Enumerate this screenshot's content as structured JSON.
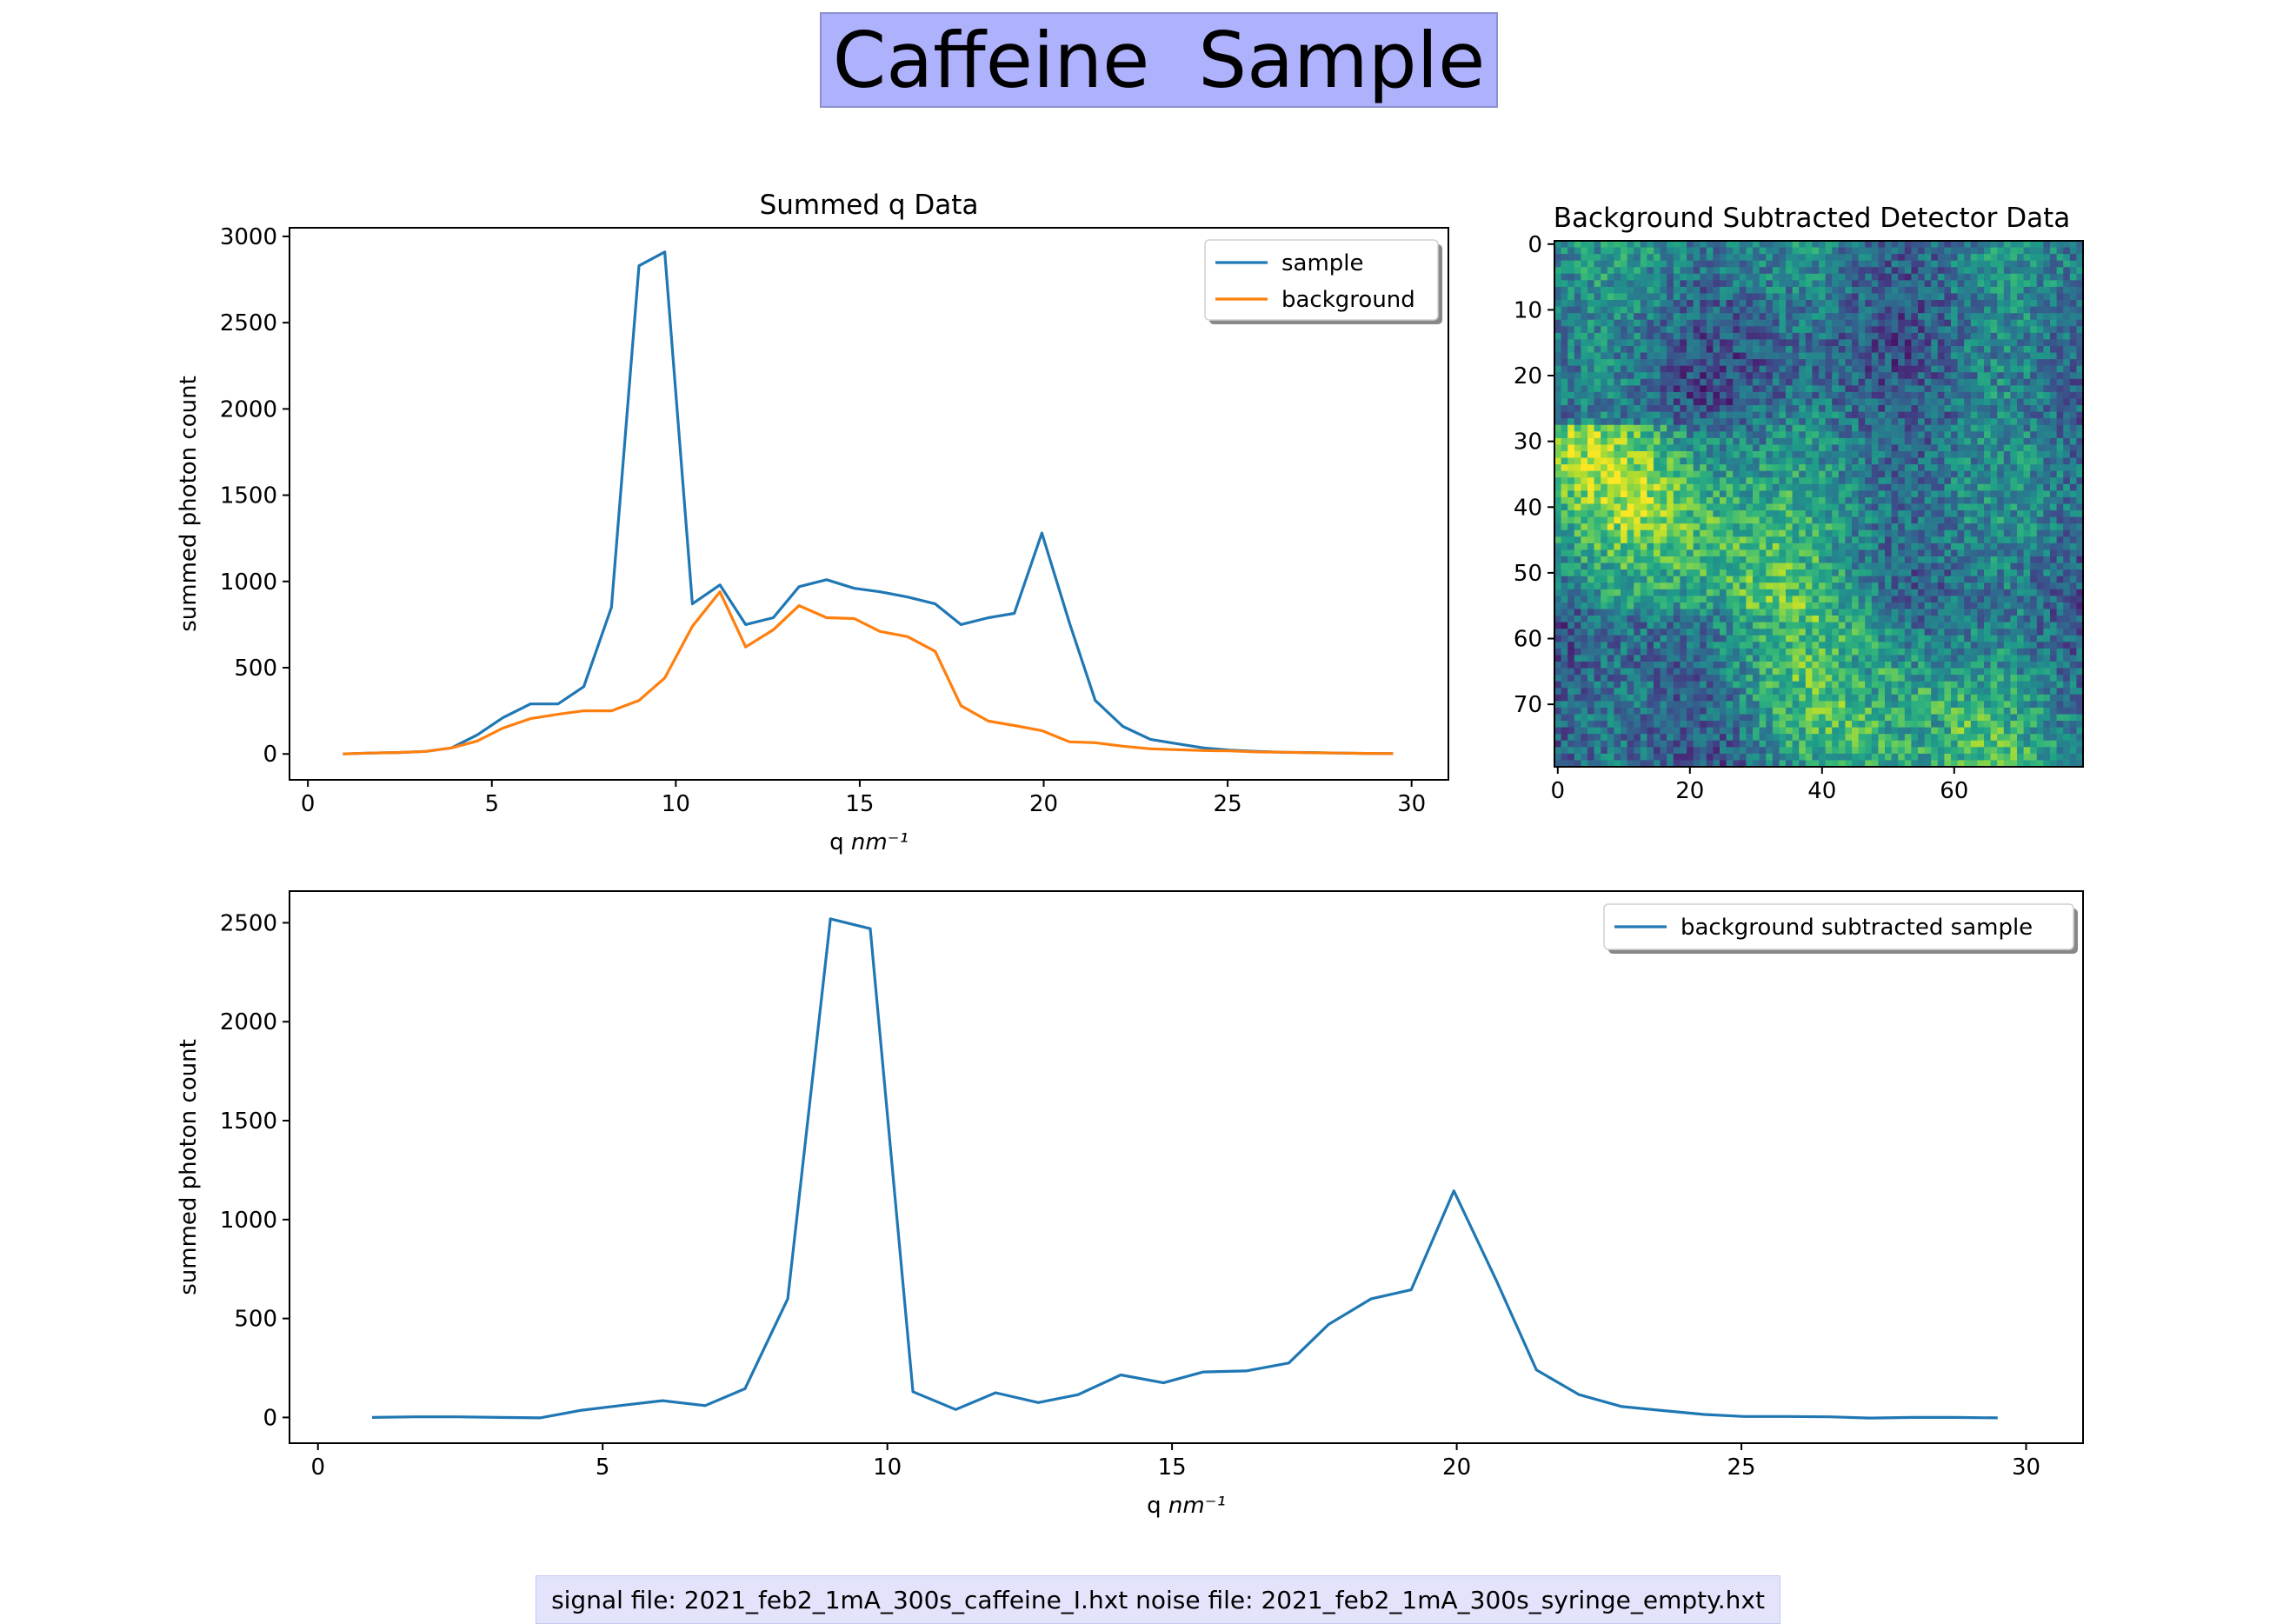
{
  "page_title": "Caffeine  Sample",
  "footer": {
    "text": "signal file: 2021_feb2_1mA_300s_caffeine_I.hxt noise file: 2021_feb2_1mA_300s_syringe_empty.hxt"
  },
  "colors": {
    "title_bg": "#aeb1fb",
    "footer_bg": "#e3e4fc",
    "sample": "#1f77b4",
    "background": "#ff7f0e"
  },
  "chart_data": [
    {
      "type": "line",
      "title": "Summed q Data",
      "xlabel": "q nm⁻¹",
      "ylabel": "summed photon count",
      "xlim": [
        -0.5,
        31
      ],
      "ylim": [
        -150,
        3050
      ],
      "xticks": [
        0,
        5,
        10,
        15,
        20,
        25,
        30
      ],
      "yticks": [
        0,
        500,
        1000,
        1500,
        2000,
        2500,
        3000
      ],
      "legend": "top-right",
      "x": [
        0.95,
        1.7,
        2.45,
        3.2,
        3.9,
        4.6,
        5.3,
        6.05,
        6.8,
        7.5,
        8.25,
        9.0,
        9.7,
        10.45,
        11.2,
        11.9,
        12.65,
        13.35,
        14.1,
        14.85,
        15.55,
        16.3,
        17.05,
        17.75,
        18.5,
        19.2,
        19.95,
        20.7,
        21.4,
        22.15,
        22.9,
        23.6,
        24.35,
        25.05,
        25.8,
        26.55,
        27.25,
        28.0,
        28.75,
        29.5
      ],
      "series": [
        {
          "name": "sample",
          "color": "#1f77b4",
          "values": [
            0,
            5,
            8,
            15,
            35,
            110,
            210,
            290,
            290,
            390,
            850,
            2830,
            2910,
            870,
            980,
            750,
            790,
            970,
            1010,
            960,
            940,
            910,
            870,
            750,
            790,
            815,
            1280,
            760,
            310,
            160,
            85,
            60,
            35,
            22,
            15,
            10,
            8,
            5,
            3,
            2
          ]
        },
        {
          "name": "background",
          "color": "#ff7f0e",
          "values": [
            0,
            5,
            8,
            15,
            35,
            75,
            150,
            205,
            230,
            250,
            250,
            310,
            440,
            740,
            940,
            620,
            720,
            860,
            790,
            785,
            710,
            680,
            595,
            280,
            190,
            165,
            135,
            70,
            65,
            45,
            30,
            25,
            20,
            18,
            12,
            10,
            7,
            5,
            3,
            2
          ]
        }
      ]
    },
    {
      "type": "heatmap",
      "title": "Background Subtracted Detector Data",
      "xlim": [
        -0.5,
        79.5
      ],
      "ylim": [
        79.5,
        -0.5
      ],
      "xticks": [
        0,
        20,
        40,
        60
      ],
      "yticks": [
        0,
        10,
        20,
        30,
        40,
        50,
        60,
        70
      ],
      "rows": 80,
      "cols": 80,
      "colormap": "viridis",
      "pattern": "low-intensity lower-left corner; bright diagonal band from left edge near row 30-45 curving down to columns 40-55 at the bottom rows; mottled medium elsewhere"
    },
    {
      "type": "line",
      "title": "",
      "xlabel": "q nm⁻¹",
      "ylabel": "summed photon count",
      "xlim": [
        -0.5,
        31
      ],
      "ylim": [
        -130,
        2660
      ],
      "xticks": [
        0,
        5,
        10,
        15,
        20,
        25,
        30
      ],
      "yticks": [
        0,
        500,
        1000,
        1500,
        2000,
        2500
      ],
      "legend": "top-right",
      "x": [
        0.95,
        1.7,
        2.45,
        3.2,
        3.9,
        4.6,
        5.3,
        6.05,
        6.8,
        7.5,
        8.25,
        9.0,
        9.7,
        10.45,
        11.2,
        11.9,
        12.65,
        13.35,
        14.1,
        14.85,
        15.55,
        16.3,
        17.05,
        17.75,
        18.5,
        19.2,
        19.95,
        20.7,
        21.4,
        22.15,
        22.9,
        23.6,
        24.35,
        25.05,
        25.8,
        26.55,
        27.25,
        28.0,
        28.75,
        29.5
      ],
      "series": [
        {
          "name": "background subtracted sample",
          "color": "#1f77b4",
          "values": [
            0,
            3,
            3,
            0,
            -2,
            35,
            60,
            85,
            60,
            145,
            600,
            2520,
            2470,
            130,
            40,
            125,
            75,
            115,
            215,
            175,
            230,
            235,
            275,
            470,
            600,
            645,
            1145,
            690,
            240,
            115,
            55,
            35,
            15,
            5,
            5,
            3,
            -3,
            0,
            0,
            -2
          ]
        }
      ]
    }
  ]
}
